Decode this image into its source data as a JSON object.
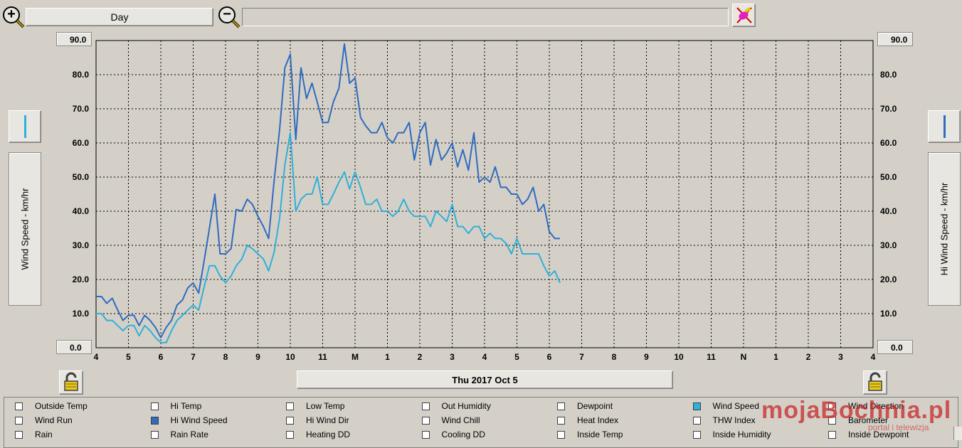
{
  "toolbar": {
    "zoom_in_label": "+",
    "zoom_out_label": "−",
    "period_label": "Day",
    "tool_icon": "pen-eraser-icon"
  },
  "chart_data": {
    "type": "line",
    "date_label": "Thu 2017 Oct 5",
    "left_axis_label": "Wind Speed - km/hr",
    "right_axis_label": "Hi Wind Speed - km/hr",
    "ylim": [
      0,
      90
    ],
    "y_ticks": [
      "0.0",
      "10.0",
      "20.0",
      "30.0",
      "40.0",
      "50.0",
      "60.0",
      "70.0",
      "80.0",
      "90.0"
    ],
    "y_top_value": "90.0",
    "y_bottom_value": "0.0",
    "x_ticks": [
      "4",
      "5",
      "6",
      "7",
      "8",
      "9",
      "10",
      "11",
      "M",
      "1",
      "2",
      "3",
      "4",
      "5",
      "6",
      "7",
      "8",
      "9",
      "10",
      "11",
      "N",
      "1",
      "2",
      "3",
      "4"
    ],
    "grid": true,
    "series": [
      {
        "name": "Hi Wind Speed",
        "color": "#2f6bbf",
        "x": [
          0,
          0.17,
          0.33,
          0.5,
          0.67,
          0.83,
          1,
          1.17,
          1.33,
          1.5,
          1.67,
          1.83,
          2,
          2.17,
          2.33,
          2.5,
          2.67,
          2.83,
          3,
          3.17,
          3.33,
          3.5,
          3.67,
          3.83,
          4,
          4.17,
          4.33,
          4.5,
          4.67,
          4.83,
          5,
          5.17,
          5.33,
          5.5,
          5.67,
          5.83,
          6,
          6.17,
          6.33,
          6.5,
          6.67,
          6.83,
          7,
          7.17,
          7.33,
          7.5,
          7.67,
          7.83,
          8,
          8.17,
          8.33,
          8.5,
          8.67,
          8.83,
          9,
          9.17,
          9.33,
          9.5,
          9.67,
          9.83,
          10,
          10.17,
          10.33,
          10.5,
          10.67,
          10.83,
          11,
          11.17,
          11.33,
          11.5,
          11.67,
          11.83,
          12,
          12.17,
          12.33,
          12.5,
          12.67,
          12.83,
          13,
          13.17,
          13.33,
          13.5,
          13.67,
          13.83,
          14,
          14.17,
          14.33
        ],
        "values": [
          15,
          15,
          13,
          14.5,
          11,
          8,
          9.5,
          9.5,
          6.5,
          9.5,
          8,
          6,
          3,
          6,
          8,
          12.5,
          14,
          17.5,
          19,
          16,
          25,
          35,
          45,
          27.5,
          27.5,
          29,
          40.5,
          40,
          43.5,
          42,
          38.5,
          35.5,
          32,
          49,
          64,
          82,
          86,
          61,
          82,
          73,
          77.5,
          72,
          66,
          66,
          72,
          76,
          89,
          77.5,
          79,
          67.5,
          65,
          63,
          63,
          66,
          61.5,
          60,
          63,
          63,
          66,
          55,
          63,
          66,
          53.5,
          61,
          55,
          57,
          60,
          53,
          58,
          52,
          63,
          48.5,
          50,
          48.5,
          53,
          47,
          47,
          45,
          45,
          42,
          43.5,
          47,
          40,
          42,
          34,
          32,
          32
        ]
      },
      {
        "name": "Wind Speed",
        "color": "#2fb0d8",
        "x": [
          0,
          0.17,
          0.33,
          0.5,
          0.67,
          0.83,
          1,
          1.17,
          1.33,
          1.5,
          1.67,
          1.83,
          2,
          2.17,
          2.33,
          2.5,
          2.67,
          2.83,
          3,
          3.17,
          3.33,
          3.5,
          3.67,
          3.83,
          4,
          4.17,
          4.33,
          4.5,
          4.67,
          4.83,
          5,
          5.17,
          5.33,
          5.5,
          5.67,
          5.83,
          6,
          6.17,
          6.33,
          6.5,
          6.67,
          6.83,
          7,
          7.17,
          7.33,
          7.5,
          7.67,
          7.83,
          8,
          8.17,
          8.33,
          8.5,
          8.67,
          8.83,
          9,
          9.17,
          9.33,
          9.5,
          9.67,
          9.83,
          10,
          10.17,
          10.33,
          10.5,
          10.67,
          10.83,
          11,
          11.17,
          11.33,
          11.5,
          11.67,
          11.83,
          12,
          12.17,
          12.33,
          12.5,
          12.67,
          12.83,
          13,
          13.17,
          13.33,
          13.5,
          13.67,
          13.83,
          14,
          14.17,
          14.33
        ],
        "values": [
          10,
          10,
          8,
          8,
          6.5,
          5,
          6.5,
          6.5,
          3.5,
          6.5,
          5,
          3,
          1.5,
          1.5,
          5,
          8,
          9.5,
          11,
          12.5,
          11,
          17.5,
          24,
          24,
          21,
          19,
          21,
          24,
          26,
          30,
          29,
          27.5,
          26,
          22.5,
          28,
          38,
          53.5,
          63,
          40,
          43.5,
          45,
          45,
          50,
          42,
          42,
          45,
          48.5,
          51.5,
          46.5,
          51.5,
          47,
          42,
          42,
          43.5,
          40,
          40,
          38.5,
          40,
          43.5,
          40,
          38.5,
          38.5,
          38.5,
          35.5,
          40,
          38.5,
          37,
          42,
          35.5,
          35.5,
          33.5,
          35.5,
          35.5,
          32,
          33.5,
          32,
          32,
          30.5,
          27.5,
          32,
          27.5,
          27.5,
          27.5,
          27.5,
          24,
          21,
          22.5,
          19
        ]
      }
    ]
  },
  "legend": {
    "watermark": "mojaBochnia.pl",
    "watermark_sub": "portal i telewizja",
    "items": [
      {
        "label": "Outside Temp",
        "checked": false
      },
      {
        "label": "Hi Temp",
        "checked": false
      },
      {
        "label": "Low Temp",
        "checked": false
      },
      {
        "label": "Out Humidity",
        "checked": false
      },
      {
        "label": "Dewpoint",
        "checked": false
      },
      {
        "label": "Wind Speed",
        "checked": true,
        "color": "#2fb0d8"
      },
      {
        "label": "Wind Direction",
        "checked": false
      },
      {
        "label": "Wind Run",
        "checked": false
      },
      {
        "label": "Hi Wind Speed",
        "checked": true,
        "color": "#2f6bbf"
      },
      {
        "label": "Hi Wind Dir",
        "checked": false
      },
      {
        "label": "Wind Chill",
        "checked": false
      },
      {
        "label": "Heat Index",
        "checked": false
      },
      {
        "label": "THW Index",
        "checked": false
      },
      {
        "label": "Barometer",
        "checked": false
      },
      {
        "label": "Rain",
        "checked": false
      },
      {
        "label": "Rain Rate",
        "checked": false
      },
      {
        "label": "Heating DD",
        "checked": false
      },
      {
        "label": "Cooling DD",
        "checked": false
      },
      {
        "label": "Inside Temp",
        "checked": false
      },
      {
        "label": "Inside Humidity",
        "checked": false
      },
      {
        "label": "Inside Dewpoint",
        "checked": false
      }
    ]
  }
}
